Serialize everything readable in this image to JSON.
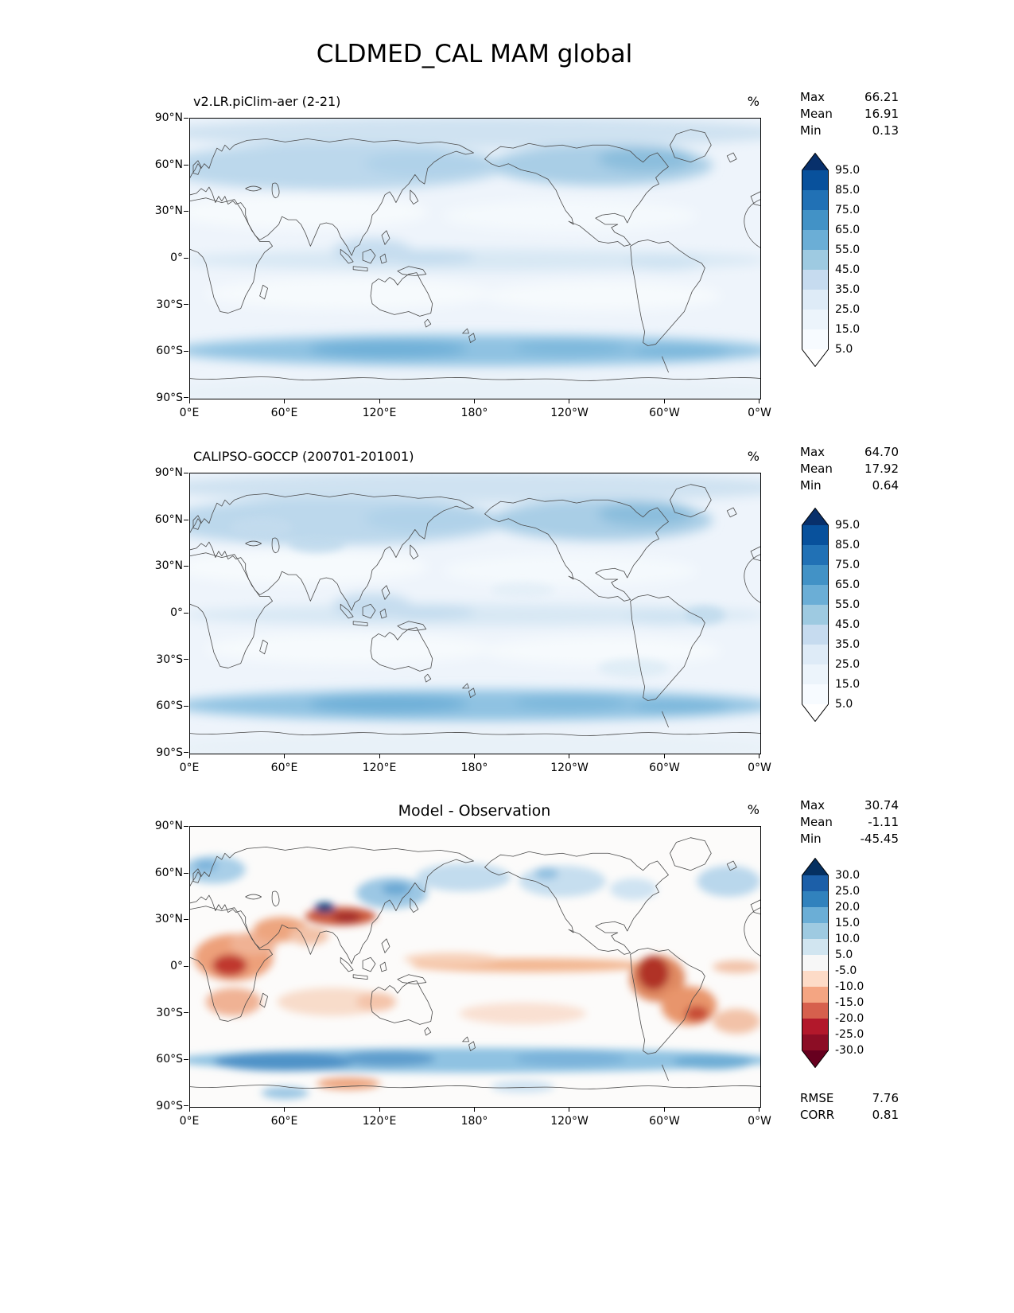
{
  "figure": {
    "title": "CLDMED_CAL MAM global"
  },
  "panels": [
    {
      "title": "v2.LR.piClim-aer (2-21)",
      "units": "%",
      "stats": [
        {
          "label": "Max",
          "value": "66.21"
        },
        {
          "label": "Mean",
          "value": "16.91"
        },
        {
          "label": "Min",
          "value": "0.13"
        }
      ],
      "lat_ticks": [
        "90°N",
        "60°N",
        "30°N",
        "0°",
        "30°S",
        "60°S",
        "90°S"
      ],
      "lon_ticks": [
        "0°E",
        "60°E",
        "120°E",
        "180°",
        "120°W",
        "60°W",
        "0°W"
      ],
      "colorbar_ticks": [
        "95.0",
        "85.0",
        "75.0",
        "65.0",
        "55.0",
        "45.0",
        "35.0",
        "25.0",
        "15.0",
        "5.0"
      ]
    },
    {
      "title": "CALIPSO-GOCCP (200701-201001)",
      "units": "%",
      "stats": [
        {
          "label": "Max",
          "value": "64.70"
        },
        {
          "label": "Mean",
          "value": "17.92"
        },
        {
          "label": "Min",
          "value": "0.64"
        }
      ],
      "lat_ticks": [
        "90°N",
        "60°N",
        "30°N",
        "0°",
        "30°S",
        "60°S",
        "90°S"
      ],
      "lon_ticks": [
        "0°E",
        "60°E",
        "120°E",
        "180°",
        "120°W",
        "60°W",
        "0°W"
      ],
      "colorbar_ticks": [
        "95.0",
        "85.0",
        "75.0",
        "65.0",
        "55.0",
        "45.0",
        "35.0",
        "25.0",
        "15.0",
        "5.0"
      ]
    },
    {
      "title": "Model - Observation",
      "units": "%",
      "stats": [
        {
          "label": "Max",
          "value": "30.74"
        },
        {
          "label": "Mean",
          "value": "-1.11"
        },
        {
          "label": "Min",
          "value": "-45.45"
        }
      ],
      "metrics": [
        {
          "label": "RMSE",
          "value": "7.76"
        },
        {
          "label": "CORR",
          "value": "0.81"
        }
      ],
      "lat_ticks": [
        "90°N",
        "60°N",
        "30°N",
        "0°",
        "30°S",
        "60°S",
        "90°S"
      ],
      "lon_ticks": [
        "0°E",
        "60°E",
        "120°E",
        "180°",
        "120°W",
        "60°W",
        "0°W"
      ],
      "colorbar_ticks": [
        "30.0",
        "25.0",
        "20.0",
        "15.0",
        "10.0",
        "5.0",
        "-5.0",
        "-10.0",
        "-15.0",
        "-20.0",
        "-25.0",
        "-30.0"
      ]
    }
  ],
  "chart_data": [
    {
      "type": "heatmap",
      "panel": "model",
      "title": "v2.LR.piClim-aer (2-21)",
      "variable": "CLDMED_CAL",
      "season": "MAM",
      "region": "global",
      "units": "%",
      "stats": {
        "max": 66.21,
        "mean": 16.91,
        "min": 0.13
      },
      "contour_levels": [
        5,
        15,
        25,
        35,
        45,
        55,
        65,
        75,
        85,
        95
      ],
      "colormap_top_to_bottom": [
        "#08519c",
        "#2171b5",
        "#4292c6",
        "#6baed6",
        "#9ecae1",
        "#c6dbef",
        "#deebf7",
        "#ecf4fb",
        "#f7fbff"
      ],
      "extend_over": "#08306b",
      "extend_under": "#ffffff",
      "x_ticks": [
        "0°E",
        "60°E",
        "120°E",
        "180°",
        "120°W",
        "60°W",
        "0°W"
      ],
      "y_ticks": [
        "90°N",
        "60°N",
        "30°N",
        "0°",
        "30°S",
        "60°S",
        "90°S"
      ]
    },
    {
      "type": "heatmap",
      "panel": "observation",
      "title": "CALIPSO-GOCCP (200701-201001)",
      "variable": "CLDMED_CAL",
      "season": "MAM",
      "region": "global",
      "units": "%",
      "stats": {
        "max": 64.7,
        "mean": 17.92,
        "min": 0.64
      },
      "contour_levels": [
        5,
        15,
        25,
        35,
        45,
        55,
        65,
        75,
        85,
        95
      ],
      "colormap_top_to_bottom": [
        "#08519c",
        "#2171b5",
        "#4292c6",
        "#6baed6",
        "#9ecae1",
        "#c6dbef",
        "#deebf7",
        "#ecf4fb",
        "#f7fbff"
      ],
      "extend_over": "#08306b",
      "extend_under": "#ffffff",
      "x_ticks": [
        "0°E",
        "60°E",
        "120°E",
        "180°",
        "120°W",
        "60°W",
        "0°W"
      ],
      "y_ticks": [
        "90°N",
        "60°N",
        "30°N",
        "0°",
        "30°S",
        "60°S",
        "90°S"
      ]
    },
    {
      "type": "heatmap",
      "panel": "difference",
      "title": "Model - Observation",
      "variable": "CLDMED_CAL",
      "season": "MAM",
      "region": "global",
      "units": "%",
      "stats": {
        "max": 30.74,
        "mean": -1.11,
        "min": -45.45
      },
      "rmse": 7.76,
      "corr": 0.81,
      "contour_levels": [
        -30,
        -25,
        -20,
        -15,
        -10,
        -5,
        5,
        10,
        15,
        20,
        25,
        30
      ],
      "colormap_top_to_bottom": [
        "#1c5fa8",
        "#3182bd",
        "#6baed6",
        "#9ecae1",
        "#d1e5f0",
        "#f7f7f7",
        "#fddbc7",
        "#f4a582",
        "#d6604d",
        "#b2182b",
        "#8c0d25"
      ],
      "extend_over": "#053061",
      "extend_under": "#67001f",
      "x_ticks": [
        "0°E",
        "60°E",
        "120°E",
        "180°",
        "120°W",
        "60°W",
        "0°W"
      ],
      "y_ticks": [
        "90°N",
        "60°N",
        "30°N",
        "0°",
        "30°S",
        "60°S",
        "90°S"
      ]
    }
  ]
}
